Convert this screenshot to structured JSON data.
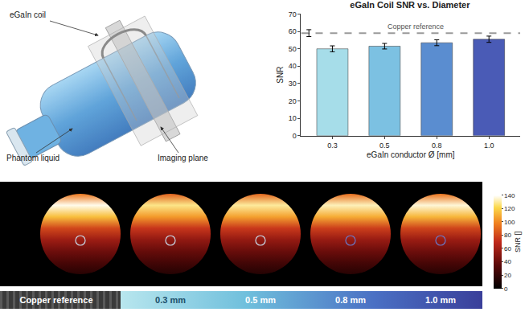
{
  "chart_data": {
    "type": "bar",
    "title": "eGaIn Coil SNR vs. Diameter",
    "x_label": "eGaIn conductor Ø [mm]",
    "y_label": "SNR",
    "categories": [
      "0.3",
      "0.5",
      "0.8",
      "1.0"
    ],
    "values": [
      50,
      51.5,
      53.5,
      55.5
    ],
    "errors": [
      1.7,
      1.6,
      1.7,
      1.8
    ],
    "colors": [
      "#a6dde9",
      "#7cc1e2",
      "#5a8dd0",
      "#4a5bb6"
    ],
    "ylim": [
      0,
      70
    ],
    "yticks": [
      0,
      10,
      20,
      30,
      40,
      50,
      60,
      70
    ],
    "reference": {
      "name": "Copper reference",
      "value": 59,
      "error": 2,
      "color": "#9a9a9a",
      "line_style": "dashed"
    }
  },
  "illustration": {
    "labels": [
      "eGaIn coil",
      "Phantom liquid",
      "Imaging plane"
    ]
  },
  "snr_maps": {
    "type": "heatmap",
    "colorbar_title": "SNR []",
    "range": [
      0,
      140
    ],
    "ticks": [
      0,
      20,
      40,
      60,
      80,
      100,
      120,
      140
    ],
    "maps": [
      {
        "label": "Copper reference",
        "profile": [
          95,
          138,
          115,
          80,
          58,
          42,
          28,
          15
        ]
      },
      {
        "label": "0.3 mm",
        "profile": [
          88,
          128,
          105,
          74,
          54,
          39,
          26,
          14
        ]
      },
      {
        "label": "0.5 mm",
        "profile": [
          90,
          130,
          107,
          75,
          55,
          40,
          26,
          14
        ]
      },
      {
        "label": "0.8 mm",
        "profile": [
          92,
          133,
          110,
          77,
          56,
          41,
          27,
          15
        ]
      },
      {
        "label": "1.0 mm",
        "profile": [
          94,
          136,
          113,
          79,
          57,
          42,
          28,
          15
        ]
      }
    ]
  }
}
